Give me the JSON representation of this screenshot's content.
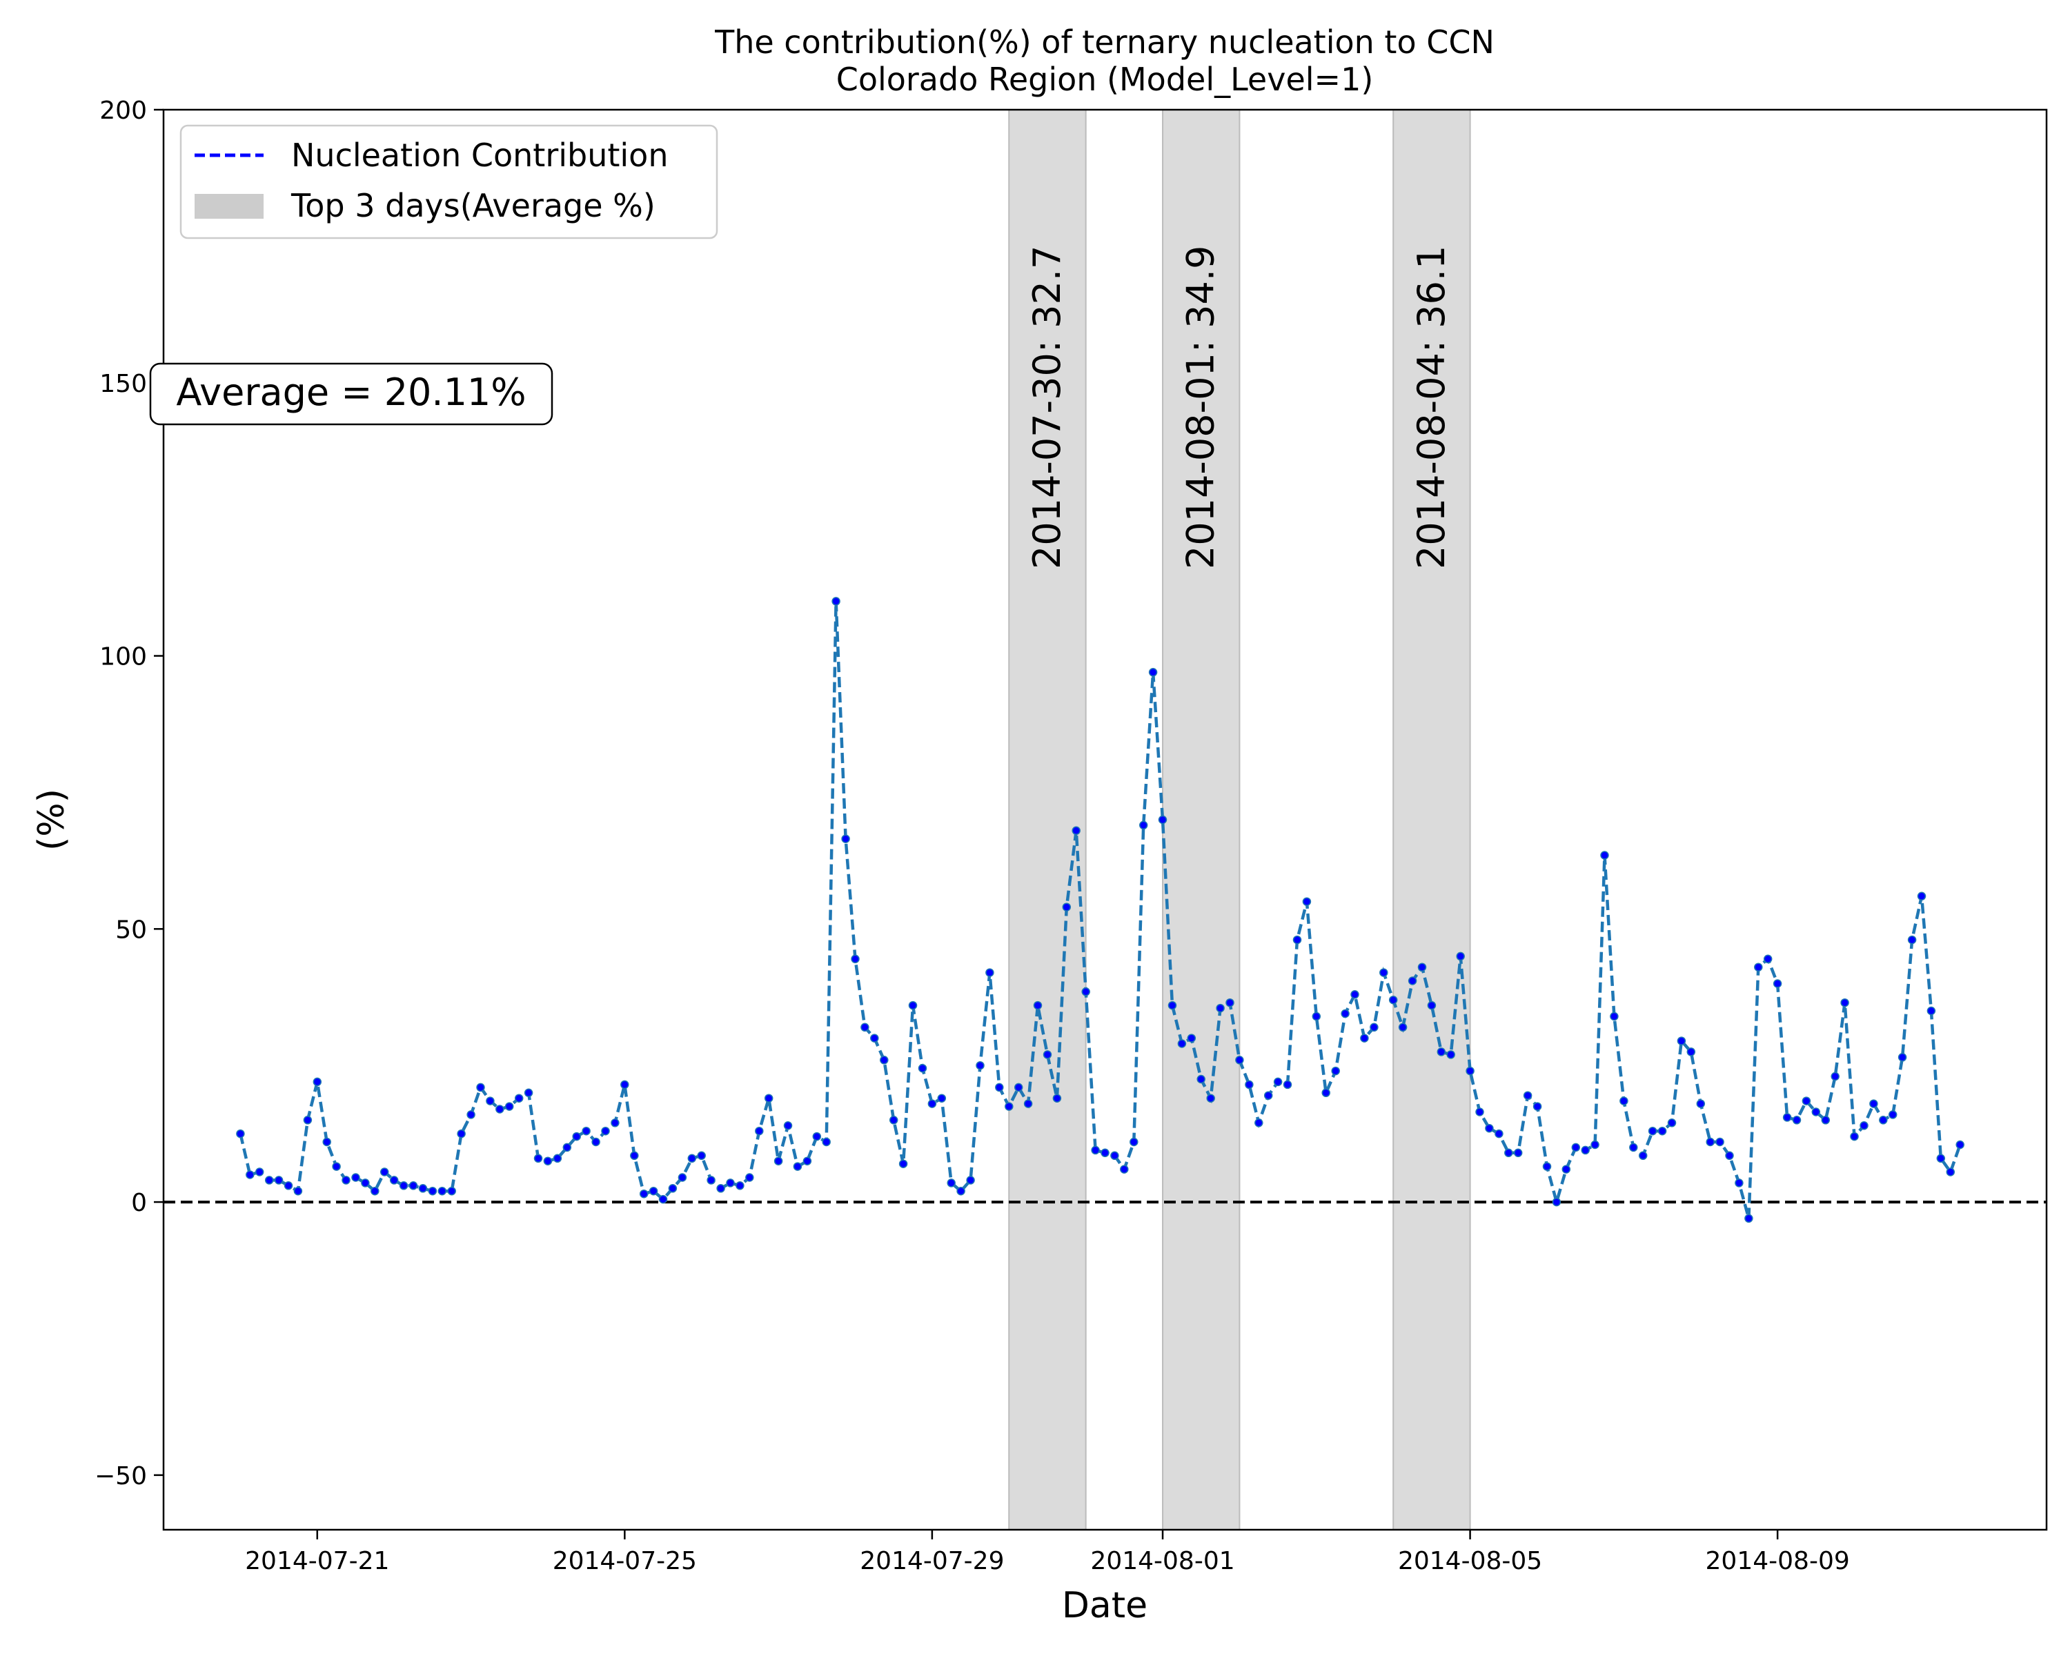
{
  "chart_data": {
    "type": "line",
    "title": "The contribution(%) of ternary nucleation to CCN",
    "subtitle": "Colorado Region (Model_Level=1)",
    "xlabel": "Date",
    "ylabel": "(%)",
    "ylim": [
      -60,
      200
    ],
    "xlim": [
      "2014-07-19T00:00",
      "2014-08-12T12:00"
    ],
    "yticks": [
      -50,
      0,
      50,
      100,
      150,
      200
    ],
    "ytick_labels": [
      "−50",
      "0",
      "50",
      "100",
      "150",
      "200"
    ],
    "xticks": [
      "2014-07-21",
      "2014-07-25",
      "2014-07-29",
      "2014-08-01",
      "2014-08-05",
      "2014-08-09"
    ],
    "grid": false,
    "legend_position": "top-left",
    "legend": {
      "line_label": "Nucleation Contribution",
      "span_label": "Top 3 days(Average %)"
    },
    "reference_line": 0,
    "average_annotation": "Average = 20.11%",
    "highlight_days": [
      {
        "date": "2014-07-30",
        "label": "2014-07-30: 32.7"
      },
      {
        "date": "2014-08-01",
        "label": "2014-08-01: 34.9"
      },
      {
        "date": "2014-08-04",
        "label": "2014-08-04: 36.1"
      }
    ],
    "x_start": "2014-07-20T00:00",
    "x_step_hours": 3,
    "series": [
      {
        "name": "Nucleation Contribution",
        "line_color": "#1f77b4",
        "marker_color": "#0000ff",
        "values": [
          12.5,
          5,
          5.5,
          4,
          4,
          3,
          2,
          15,
          22,
          11,
          6.5,
          4,
          4.5,
          3.5,
          2,
          5.5,
          4,
          3,
          3,
          2.5,
          2,
          2,
          2,
          12.5,
          16,
          21,
          18.5,
          17,
          17.5,
          19,
          20,
          8,
          7.5,
          8,
          10,
          12,
          13,
          11,
          13,
          14.5,
          21.5,
          8.5,
          1.5,
          2,
          0.5,
          2.5,
          4.5,
          8,
          8.5,
          4,
          2.5,
          3.5,
          3,
          4.5,
          13,
          19,
          7.5,
          14,
          6.5,
          7.5,
          12,
          11,
          110,
          66.5,
          44.5,
          32,
          30,
          26,
          15,
          7,
          36,
          24.5,
          18,
          19,
          3.5,
          2,
          4,
          25,
          42,
          21,
          17.5,
          21,
          18,
          36,
          27,
          19,
          54,
          68,
          38.5,
          9.5,
          9,
          8.5,
          6,
          11,
          69,
          97,
          70,
          36,
          29,
          30,
          22.5,
          19,
          35.5,
          36.5,
          26,
          21.5,
          14.5,
          19.5,
          22,
          21.5,
          48,
          55,
          34,
          20,
          24,
          34.5,
          38,
          30,
          32,
          42,
          37,
          32,
          40.5,
          43,
          36,
          27.5,
          27,
          45,
          24,
          16.5,
          13.5,
          12.5,
          9,
          9,
          19.5,
          17.5,
          6.5,
          0,
          6,
          10,
          9.5,
          10.5,
          63.5,
          34,
          18.5,
          10,
          8.5,
          13,
          13,
          14.5,
          29.5,
          27.5,
          18,
          11,
          11,
          8.5,
          3.5,
          -3,
          43,
          44.5,
          40,
          15.5,
          15,
          18.5,
          16.5,
          15,
          23,
          36.5,
          12,
          14,
          18,
          15,
          16,
          26.5,
          48,
          56,
          35,
          8,
          5.5,
          10.5
        ]
      }
    ]
  }
}
